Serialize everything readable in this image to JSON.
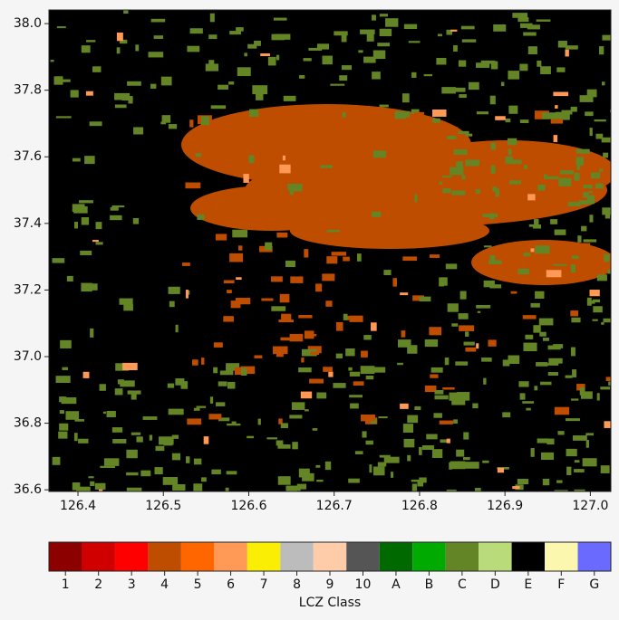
{
  "map": {
    "xlim": [
      126.366,
      127.024
    ],
    "ylim": [
      36.595,
      38.041
    ],
    "xticks": [
      126.4,
      126.5,
      126.6,
      126.7,
      126.8,
      126.9,
      {
        "value": 127,
        "label": "127.0"
      }
    ],
    "yticks": [
      {
        "value": 36.6,
        "label": "36.6"
      },
      36.8,
      {
        "value": 37,
        "label": "37.0"
      },
      37.2,
      37.4,
      37.6,
      37.8,
      {
        "value": 38,
        "label": "38.0"
      }
    ],
    "colorbar": {
      "label": "LCZ Class",
      "classes": [
        {
          "label": "1",
          "color": "#8c0000"
        },
        {
          "label": "2",
          "color": "#d10000"
        },
        {
          "label": "3",
          "color": "#ff0000"
        },
        {
          "label": "4",
          "color": "#bf4d00"
        },
        {
          "label": "5",
          "color": "#ff6600"
        },
        {
          "label": "6",
          "color": "#ff9955"
        },
        {
          "label": "7",
          "color": "#faee05"
        },
        {
          "label": "8",
          "color": "#bcbcbc"
        },
        {
          "label": "9",
          "color": "#ffccaa"
        },
        {
          "label": "10",
          "color": "#555555"
        },
        {
          "label": "A",
          "color": "#006a00"
        },
        {
          "label": "B",
          "color": "#00aa00"
        },
        {
          "label": "C",
          "color": "#648525"
        },
        {
          "label": "D",
          "color": "#b9db79"
        },
        {
          "label": "E",
          "color": "#000000"
        },
        {
          "label": "F",
          "color": "#fbf7ae"
        },
        {
          "label": "G",
          "color": "#6a6aff"
        }
      ]
    }
  }
}
